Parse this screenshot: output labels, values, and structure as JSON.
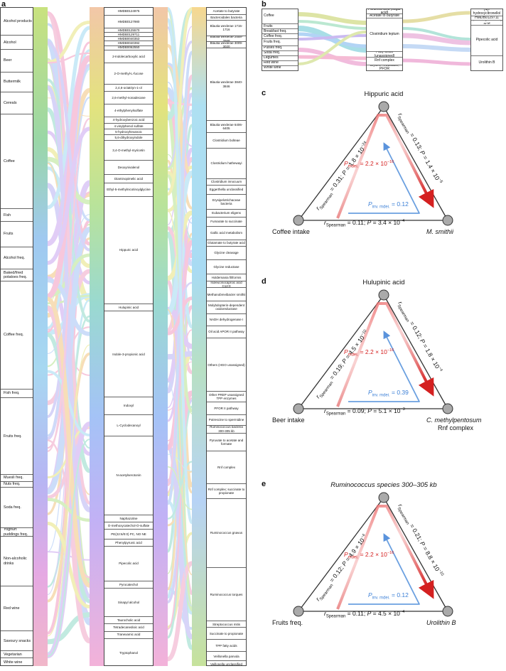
{
  "panels": {
    "a": "a",
    "b": "b",
    "c": "c",
    "d": "d",
    "e": "e"
  },
  "panel_a": {
    "left": [
      "Alcohol products",
      "Alcohol",
      "Beer",
      "Buttermilk",
      "Cereals",
      "Coffee",
      "Fish",
      "Fruits",
      "Alcohol freq.",
      "Baked/fried potatoes freq.",
      "Coffee freq.",
      "Fish freq.",
      "Fruits freq.",
      "Muesli freq.",
      "Nuts freq.",
      "Soda freq.",
      "Yoghurt puddings freq.",
      "Non-alcoholic drinks",
      "Red wine",
      "Savoury snacks",
      "Vegetarian",
      "White wine"
    ],
    "middle": [
      "HMDB0124975",
      "HMDB0127980",
      "HMDB0125570",
      "HMDB0129711",
      "HMDB0040353",
      "HMDB0040392",
      "HMDB0062550",
      "2-Indolecarboxylic acid",
      "2-O-methyl-L-fucose",
      "2,4,6-octatriyn-1-ol",
      "2,6-methyl-nonadecane",
      "4-ethylphenylsulfate",
      "4-hydroxybenzoic acid",
      "4-vinylphenol sulfate",
      "5-hydroxyhexanoic",
      "5,6-dihydroxyindole",
      "3,4-O-methyl-myricetin",
      "Deoxynivalenol",
      "Diaminopimelic acid",
      "Ethyl-5-methylnicotinoylglycine",
      "Hippuric acid",
      "Hulupinic acid",
      "Indole-3-propionic acid",
      "Indoxyl",
      "L-Cyclodecanoyl",
      "N-acetylserotonin",
      "Naphazoline",
      "O-methoxycatechol-O-sulfate",
      "PE(22:6/0:0) PC, NO NE",
      "Phenylpyruvic acid",
      "Pipecolic acid",
      "Pyrocatechol",
      "Sinapyl alcohol",
      "Taurocholic acid",
      "Tetradecanedioic acid",
      "Tranexamic acid",
      "Tryptophanol"
    ],
    "right": [
      "Acetate to butyrate",
      "Bacteroidales bacteria",
      "Blautia wexlerae 1715-1716",
      "Blautia wexlerae 2558-2568",
      "Blautia wexlerae 3009-3020",
      "Blautia wexlerae 3840-3846",
      "Blautia wexlerae 6406-6405",
      "Clostridium bolteae",
      "Clostridium hathewayi",
      "Clostridium innocuum",
      "Eggerthella unclassified",
      "Erysipelotrichaceae bacteria",
      "Eubacterium eligens",
      "Fumarate to succinate",
      "Gallic acid metabolism",
      "Glutamate to butyrate acid",
      "Glycine cleavage",
      "Glycine reductase",
      "Holdemania filiformis",
      "Isoleucinocaproic acid C12:0",
      "Methanobrevibacter smithii",
      "Molybdopterin-dependent oxidoreductase",
      "NADH dehydrogenase I",
      "Oil acid APOR II pathway",
      "Others (HGO unassigned)",
      "Other PREP unassigned TPP enzymes",
      "PFOR II pathway",
      "Putrescine to spermidine",
      "Ruminococcus bacteria 300-305 kb",
      "Pyruvate to acetate and formate",
      "Rnf complex",
      "Rnf complex; succinate to propionate",
      "Ruminococcus gnavus",
      "Ruminococcus torques",
      "Streptococcus mitis",
      "Succinate to propionate",
      "TPP fatty acids",
      "Veillonella parvula",
      "Veillonella unclassified"
    ]
  },
  "panel_b": {
    "left": [
      "Coffee",
      "Fruits",
      "Breakfast freq.",
      "Coffee freq.",
      "Fruits freq.",
      "Pulses freq.",
      "Soda freq.",
      "Legumes",
      "Red wine",
      "White wine"
    ],
    "middle": [
      "Furanoid acid (sugar acid)",
      "Acetate to butyrate",
      "Clostridium leptum",
      "Fatty acids (unassigned)",
      "Rnf complex",
      "Glycine reductase; PFOR"
    ],
    "right": [
      "(+)-hydroxycitronellol",
      "HMDB0129711",
      "3,4-methylenedioxy acid",
      "Pipecolic acid",
      "Urolithin B"
    ]
  },
  "panel_c": {
    "top": "Hippuric acid",
    "left_node": "Coffee intake",
    "right_node": "M. smithii",
    "left_edge": "r_Spearman = 0.31; P = 1.8 × 10^−24",
    "right_edge": "r_Spearman = 0.13; P = 1.4 × 10^−5",
    "bottom_edge": "r_Spearman = 0.11; P = 3.4 × 10^−4",
    "p_mdei": "P_mdei. = 2.2 × 10^−16",
    "p_inv": "P_inv. mdei. = 0.12"
  },
  "panel_d": {
    "top": "Hulupinic acid",
    "left_node": "Beer intake",
    "right_node": "C. methylpentosum Rnf complex",
    "left_edge": "r_Spearman = 0.19; P = 4.5 × 10^−10",
    "right_edge": "r_Spearman = 0.12; P = 1.8 × 10^−4",
    "bottom_edge": "r_Spearman = 0.09; P = 5.1 × 10^−3",
    "p_mdei": "P_mdei. = 2.2 × 10^−16",
    "p_inv": "P_inv. mdei. = 0.39"
  },
  "panel_e": {
    "top": "Ruminococcus species 300–305 kb",
    "left_node": "Fruits freq.",
    "right_node": "Urolithin B",
    "left_edge": "r_Spearman = 0.12; P = 4.9 × 10^−4",
    "right_edge": "r_Spearman = 0.21; P = 8.8 × 10^−10",
    "bottom_edge": "r_Spearman = 0.11; P = 4.5 × 10^−4",
    "p_mdei": "P_mdei. = 2.2 × 10^−16",
    "p_inv": "P_inv. mdei. = 0.12"
  },
  "parts": {
    "c": {
      "top": "Hippuric acid",
      "left": "Coffee intake",
      "right": "M. smithii",
      "l_r": "0.31",
      "l_p": "1.8 × 10",
      "l_e": "−24",
      "r_r": "0.13",
      "r_p": "1.4 × 10",
      "r_e": "−5",
      "b_r": "0.11",
      "b_p": "3.4 × 10",
      "b_e": "−4",
      "m_p": "2.2 × 10",
      "m_e": "−16",
      "inv": "0.12"
    },
    "d": {
      "top": "Hulupinic acid",
      "left": "Beer intake",
      "right": "C. methylpentosum",
      "right2": "Rnf complex",
      "l_r": "0.19",
      "l_p": "4.5 × 10",
      "l_e": "−10",
      "r_r": "0.12",
      "r_p": "1.8 × 10",
      "r_e": "−4",
      "b_r": "0.09",
      "b_p": "5.1 × 10",
      "b_e": "−3",
      "m_p": "2.2 × 10",
      "m_e": "−16",
      "inv": "0.39"
    },
    "e": {
      "top": "Ruminococcus species 300–305 kb",
      "left": "Fruits freq.",
      "right": "Urolithin B",
      "l_r": "0.12",
      "l_p": "4.9 × 10",
      "l_e": "−4",
      "r_r": "0.21",
      "r_p": "8.8 × 10",
      "r_e": "−10",
      "b_r": "0.11",
      "b_p": "4.5 × 10",
      "b_e": "−4",
      "m_p": "2.2 × 10",
      "m_e": "−16",
      "inv": "0.12"
    }
  },
  "words": {
    "spearman": "Spearman",
    "mdei": "mdei.",
    "inv": "inv. mdei.",
    "r": "r",
    "P": "P",
    "eq": " = ",
    "sep": "; ",
    "times": " × 10"
  }
}
